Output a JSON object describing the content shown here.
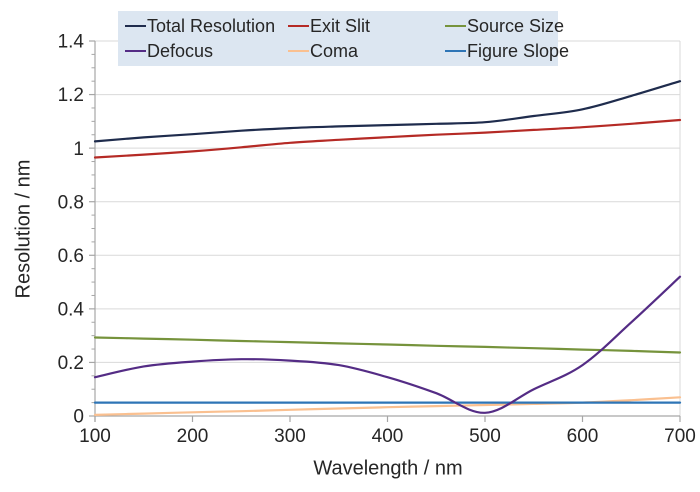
{
  "chart_data": {
    "type": "line",
    "title": "",
    "xlabel": "Wavelength / nm",
    "ylabel": "Resolution / nm",
    "xlim": [
      100,
      700
    ],
    "ylim": [
      0,
      1.4
    ],
    "x_ticks": [
      "100",
      "200",
      "300",
      "400",
      "500",
      "600",
      "700"
    ],
    "y_ticks": [
      "0",
      "0.2",
      "0.4",
      "0.6",
      "0.8",
      "1",
      "1.2",
      "1.4"
    ],
    "y_major_step": 0.2,
    "y_minor_step": 0.05,
    "grid": "horizontal-only",
    "legend_position": "top",
    "x": [
      100,
      150,
      200,
      250,
      300,
      350,
      400,
      450,
      500,
      550,
      600,
      650,
      700
    ],
    "series": [
      {
        "name": "Total Resolution",
        "color": "#1f2c4d",
        "values": [
          1.025,
          1.04,
          1.052,
          1.065,
          1.075,
          1.081,
          1.086,
          1.091,
          1.097,
          1.12,
          1.145,
          1.195,
          1.25
        ]
      },
      {
        "name": "Exit Slit",
        "color": "#b52a25",
        "values": [
          0.965,
          0.976,
          0.988,
          1.003,
          1.02,
          1.031,
          1.041,
          1.05,
          1.058,
          1.068,
          1.078,
          1.091,
          1.105
        ]
      },
      {
        "name": "Source Size",
        "color": "#76933c",
        "values": [
          0.293,
          0.289,
          0.285,
          0.28,
          0.276,
          0.271,
          0.267,
          0.262,
          0.258,
          0.253,
          0.248,
          0.243,
          0.237
        ]
      },
      {
        "name": "Defocus",
        "color": "#542c85",
        "values": [
          0.145,
          0.185,
          0.203,
          0.212,
          0.207,
          0.19,
          0.145,
          0.085,
          0.012,
          0.1,
          0.19,
          0.35,
          0.52
        ]
      },
      {
        "name": "Coma",
        "color": "#fac090",
        "values": [
          0.004,
          0.009,
          0.014,
          0.018,
          0.023,
          0.028,
          0.033,
          0.037,
          0.041,
          0.045,
          0.05,
          0.059,
          0.07
        ]
      },
      {
        "name": "Figure Slope",
        "color": "#2e75b6",
        "values": [
          0.05,
          0.05,
          0.05,
          0.05,
          0.05,
          0.05,
          0.05,
          0.05,
          0.05,
          0.05,
          0.05,
          0.05,
          0.05
        ]
      }
    ]
  },
  "colors": {
    "legend_bg": "#dce6f1",
    "grid": "#d9d9d9",
    "axis": "#a6a6a6",
    "text": "#262626"
  }
}
